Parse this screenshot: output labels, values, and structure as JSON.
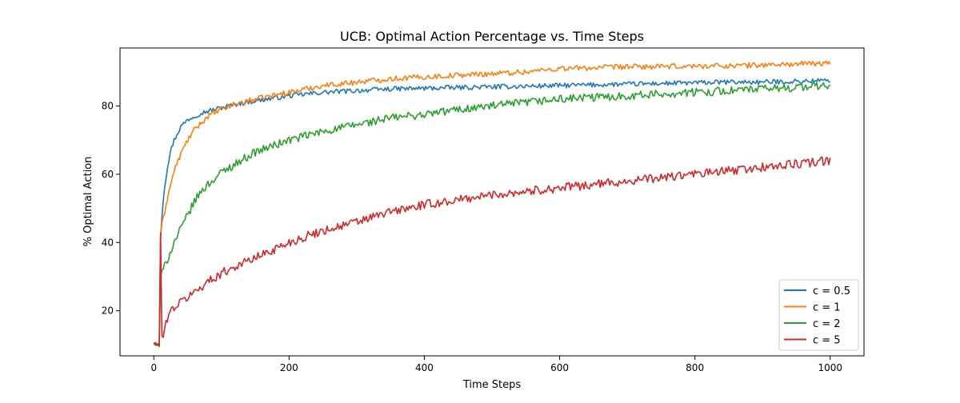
{
  "chart_data": {
    "type": "line",
    "title": "UCB: Optimal Action Percentage vs. Time Steps",
    "xlabel": "Time Steps",
    "ylabel": "% Optimal Action",
    "xlim": [
      -50,
      1050
    ],
    "ylim": [
      6.8,
      97
    ],
    "xticks": [
      0,
      200,
      400,
      600,
      800,
      1000
    ],
    "yticks": [
      20,
      40,
      60,
      80
    ],
    "grid": false,
    "legend_position": "lower-right",
    "series": [
      {
        "name": "c = 0.5",
        "color": "#1f77b4",
        "noise": 0.7,
        "x": [
          0,
          2,
          4,
          6,
          8,
          10,
          12,
          15,
          20,
          25,
          30,
          40,
          50,
          60,
          70,
          80,
          100,
          120,
          150,
          200,
          250,
          300,
          350,
          400,
          450,
          500,
          550,
          600,
          650,
          700,
          750,
          800,
          850,
          900,
          950,
          1000
        ],
        "y": [
          10.5,
          10.2,
          10.5,
          10,
          9.8,
          42,
          48,
          55,
          62,
          67,
          70,
          74,
          76,
          77,
          78,
          78.5,
          79.5,
          80.5,
          81.5,
          83,
          84,
          84.5,
          85,
          85.2,
          85.4,
          85.6,
          85.8,
          86,
          86.2,
          86.4,
          86.6,
          86.8,
          87,
          87,
          87.2,
          87.5
        ]
      },
      {
        "name": "c = 1",
        "color": "#ff7f0e",
        "noise": 0.8,
        "x": [
          0,
          2,
          4,
          6,
          8,
          10,
          12,
          15,
          20,
          25,
          30,
          40,
          50,
          60,
          70,
          80,
          100,
          120,
          150,
          200,
          250,
          300,
          350,
          400,
          450,
          500,
          550,
          600,
          650,
          700,
          750,
          800,
          850,
          900,
          950,
          1000
        ],
        "y": [
          10.3,
          10,
          10.5,
          9.8,
          9.6,
          42,
          45,
          48,
          53,
          57,
          61,
          66,
          70,
          73,
          75,
          77,
          79,
          80.5,
          82,
          84,
          86,
          87,
          88,
          88.5,
          89,
          89.5,
          90,
          91,
          91.2,
          91.5,
          91.5,
          91.7,
          91.8,
          92,
          92.3,
          92.5
        ]
      },
      {
        "name": "c = 2",
        "color": "#2ca02c",
        "noise": 1.2,
        "x": [
          0,
          2,
          4,
          6,
          8,
          10,
          12,
          15,
          20,
          25,
          30,
          40,
          50,
          60,
          70,
          80,
          100,
          120,
          150,
          200,
          250,
          300,
          350,
          400,
          450,
          500,
          550,
          600,
          650,
          700,
          750,
          800,
          850,
          900,
          950,
          1000
        ],
        "y": [
          10.6,
          10,
          9.8,
          10.2,
          9.5,
          30,
          31,
          32.5,
          35,
          37.5,
          40,
          44,
          48,
          52,
          55,
          57,
          60.5,
          63,
          66.5,
          70,
          72.5,
          74.5,
          76.5,
          77.5,
          79,
          80,
          81,
          82,
          82.5,
          83,
          83.5,
          84,
          84.5,
          85,
          85.5,
          86
        ]
      },
      {
        "name": "c = 5",
        "color": "#d62728",
        "noise": 1.3,
        "x": [
          0,
          2,
          4,
          6,
          8,
          10,
          12,
          15,
          20,
          25,
          30,
          40,
          50,
          60,
          70,
          80,
          100,
          120,
          150,
          200,
          250,
          300,
          350,
          400,
          450,
          500,
          550,
          600,
          650,
          700,
          750,
          800,
          850,
          900,
          950,
          1000
        ],
        "y": [
          10.4,
          10.7,
          10,
          10.3,
          9.8,
          43,
          12,
          13,
          18,
          20,
          21,
          22.5,
          24,
          25.5,
          27,
          28.5,
          31,
          33,
          35.5,
          40,
          43.5,
          46,
          49,
          51,
          52.5,
          54,
          55,
          56,
          57,
          58,
          59,
          60,
          61,
          62,
          63,
          64
        ]
      }
    ]
  }
}
